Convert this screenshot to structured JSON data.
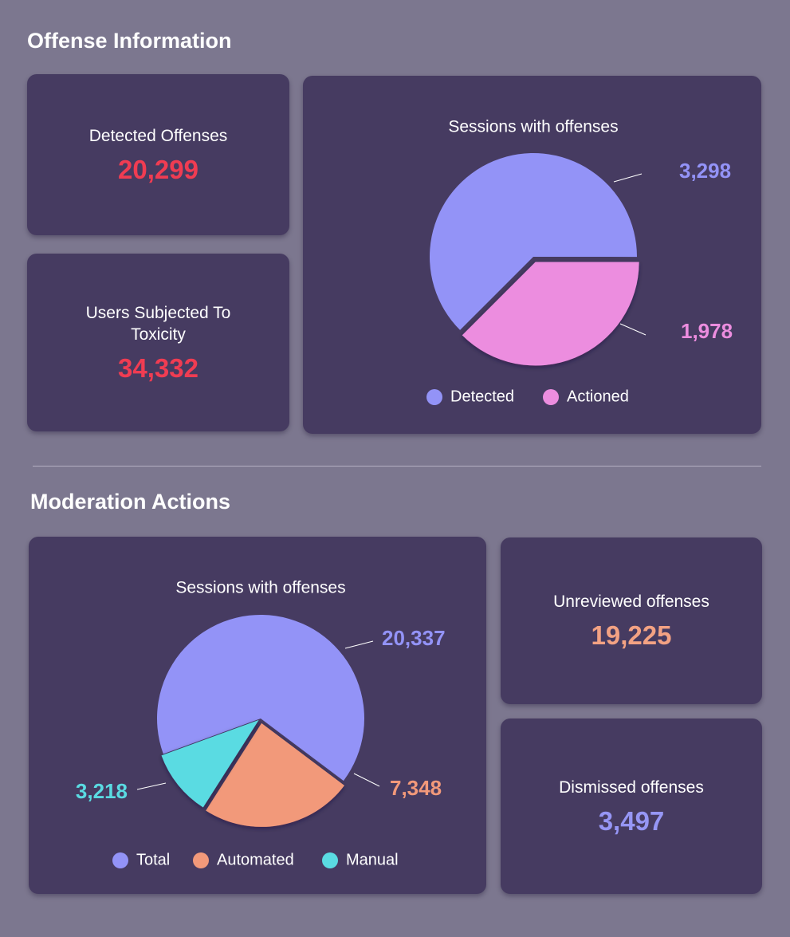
{
  "sections": [
    {
      "title": "Offense Information",
      "stats": [
        {
          "label": "Detected Offenses",
          "value": "20,299",
          "color": "#f03c52"
        },
        {
          "label": "Users Subjected To Toxicity",
          "value": "34,332",
          "color": "#f03c52"
        }
      ]
    },
    {
      "title": "Moderation Actions",
      "stats": [
        {
          "label": "Unreviewed offenses",
          "value": "19,225",
          "color": "#f3a283"
        },
        {
          "label": "Dismissed offenses",
          "value": "3,497",
          "color": "#9696f5"
        }
      ]
    }
  ],
  "chart_data": [
    {
      "type": "pie",
      "title": "Sessions with offenses",
      "categories": [
        "Detected",
        "Actioned"
      ],
      "values": [
        3298,
        1978
      ],
      "value_labels": [
        "3,298",
        "1,978"
      ],
      "colors": [
        "#9393f7",
        "#ec8ddf"
      ]
    },
    {
      "type": "pie",
      "title": "Sessions with offenses",
      "categories": [
        "Total",
        "Automated",
        "Manual"
      ],
      "values": [
        20337,
        7348,
        3218
      ],
      "value_labels": [
        "20,337",
        "7,348",
        "3,218"
      ],
      "colors": [
        "#9393f7",
        "#f2997a",
        "#5adbe2"
      ]
    }
  ]
}
